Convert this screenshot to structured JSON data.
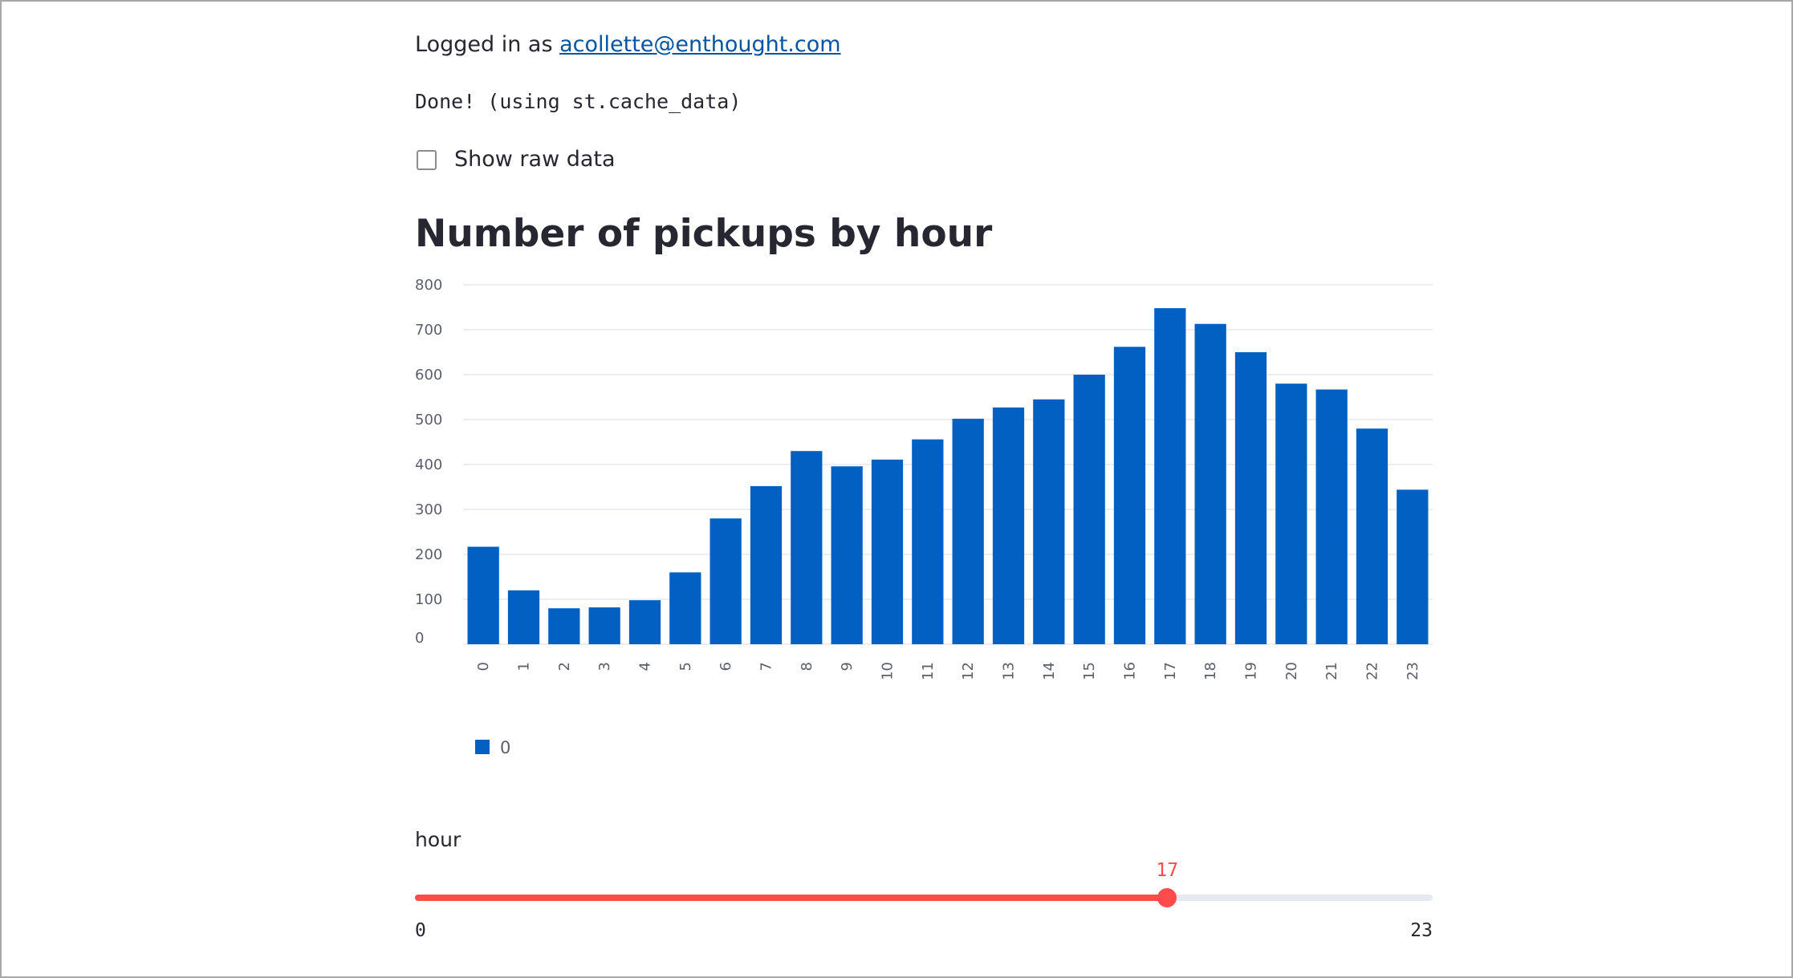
{
  "login": {
    "prefix": "Logged in as ",
    "email": "acollette@enthought.com"
  },
  "status": {
    "text": "Done! (using st.cache_data)"
  },
  "checkbox": {
    "label": "Show raw data",
    "checked": false
  },
  "chart_section": {
    "heading": "Number of pickups by hour"
  },
  "chart_data": {
    "type": "bar",
    "categories": [
      "0",
      "1",
      "2",
      "3",
      "4",
      "5",
      "6",
      "7",
      "8",
      "9",
      "10",
      "11",
      "12",
      "13",
      "14",
      "15",
      "16",
      "17",
      "18",
      "19",
      "20",
      "21",
      "22",
      "23"
    ],
    "series": [
      {
        "name": "0",
        "values": [
          217,
          120,
          80,
          82,
          98,
          160,
          280,
          352,
          430,
          396,
          411,
          456,
          502,
          527,
          545,
          600,
          662,
          748,
          713,
          650,
          580,
          567,
          480,
          344
        ]
      }
    ],
    "ylim": [
      0,
      800
    ],
    "yticks": [
      0,
      100,
      200,
      300,
      400,
      500,
      600,
      700,
      800
    ],
    "grid": true,
    "legend": "bottom-left",
    "color": "#0160c2"
  },
  "slider": {
    "label": "hour",
    "min": 0,
    "max": 23,
    "value": 17,
    "min_label": "0",
    "max_label": "23",
    "value_label": "17",
    "color": "#ff4b4b"
  }
}
